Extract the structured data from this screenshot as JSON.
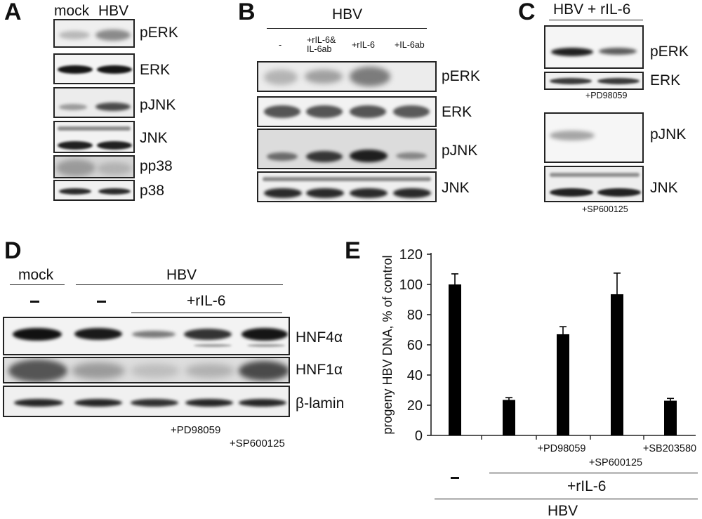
{
  "panels": {
    "A": {
      "letter": "A",
      "lanes": [
        "mock",
        "HBV"
      ],
      "blots": [
        "pERK",
        "ERK",
        "pJNK",
        "JNK",
        "pp38",
        "p38"
      ]
    },
    "B": {
      "letter": "B",
      "header": "HBV",
      "lanes": [
        "-",
        "+rIL-6&\nIL-6ab",
        "+rIL-6",
        "+IL-6ab"
      ],
      "blots": [
        "pERK",
        "ERK",
        "pJNK",
        "JNK"
      ]
    },
    "C": {
      "letter": "C",
      "header": "HBV + rIL-6",
      "blots": [
        "pERK",
        "ERK",
        "pJNK",
        "JNK"
      ],
      "inhibitor_erk": "+PD98059",
      "inhibitor_jnk": "+SP600125"
    },
    "D": {
      "letter": "D",
      "group_mock": "mock",
      "group_hbv": "HBV",
      "group_ril6": "+rIL-6",
      "minus_1": "-",
      "minus_2": "-",
      "blots": [
        "HNF4α",
        "HNF1α",
        "β-lamin"
      ],
      "inhibitor_1": "+PD98059",
      "inhibitor_2": "+SP600125"
    },
    "E": {
      "letter": "E",
      "minus": "-",
      "ril6": "+rIL-6",
      "hbv": "HBV"
    }
  },
  "chart_data": {
    "type": "bar",
    "ylabel": "progeny HBV DNA, % of control",
    "ylim": [
      0,
      120
    ],
    "yticks": [
      0,
      20,
      40,
      60,
      80,
      100,
      120
    ],
    "categories": [
      "",
      "",
      "+PD98059",
      "+SP600125",
      "+SB203580"
    ],
    "values": [
      100,
      23.5,
      67,
      93.5,
      23
    ],
    "errors": [
      7,
      1.5,
      5,
      14,
      1.5
    ],
    "bar_color": "#000000"
  }
}
